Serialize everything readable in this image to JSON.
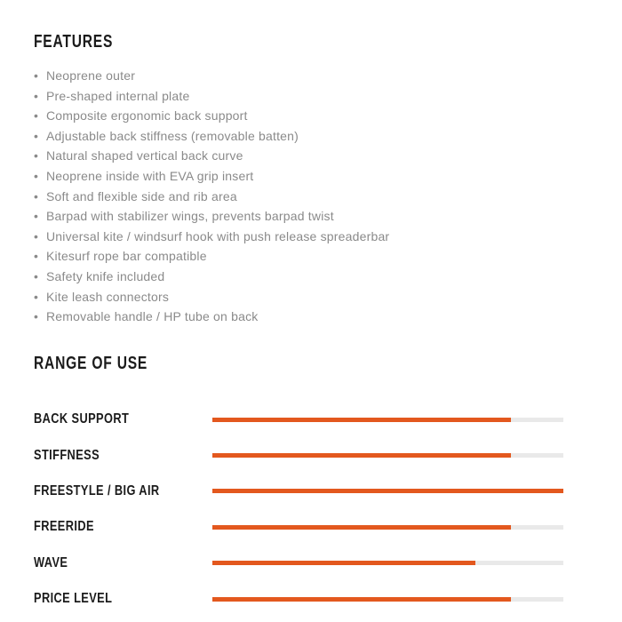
{
  "features": {
    "title": "FEATURES",
    "items": [
      "Neoprene outer",
      "Pre-shaped internal plate",
      "Composite ergonomic back support",
      "Adjustable back stiffness (removable batten)",
      "Natural shaped vertical back curve",
      "Neoprene inside with EVA grip insert",
      "Soft and flexible side and rib area",
      "Barpad with stabilizer wings, prevents barpad twist",
      "Universal kite / windsurf hook with push release spreaderbar",
      "Kitesurf rope bar compatible",
      "Safety knife included",
      "Kite leash connectors",
      "Removable handle / HP tube on back"
    ]
  },
  "range_of_use": {
    "title": "RANGE OF USE",
    "rows": [
      {
        "label": "BACK SUPPORT",
        "value": 85
      },
      {
        "label": "STIFFNESS",
        "value": 85
      },
      {
        "label": "FREESTYLE / BIG AIR",
        "value": 100
      },
      {
        "label": "FREERIDE",
        "value": 85
      },
      {
        "label": "WAVE",
        "value": 75
      },
      {
        "label": "PRICE LEVEL",
        "value": 85
      }
    ]
  },
  "colors": {
    "accent_orange": "#e3581e",
    "track_gray": "#e9e9e9",
    "heading_text": "#1b1b1b",
    "body_text": "#8a8a8a"
  },
  "chart_data": {
    "type": "bar",
    "orientation": "horizontal",
    "title": "RANGE OF USE",
    "categories": [
      "BACK SUPPORT",
      "STIFFNESS",
      "FREESTYLE / BIG AIR",
      "FREERIDE",
      "WAVE",
      "PRICE LEVEL"
    ],
    "values": [
      85,
      85,
      100,
      85,
      75,
      85
    ],
    "xlim": [
      0,
      100
    ],
    "ylabel": "",
    "xlabel": "",
    "legend": false,
    "grid": false,
    "bar_color": "#e3581e",
    "track_color": "#e9e9e9"
  }
}
